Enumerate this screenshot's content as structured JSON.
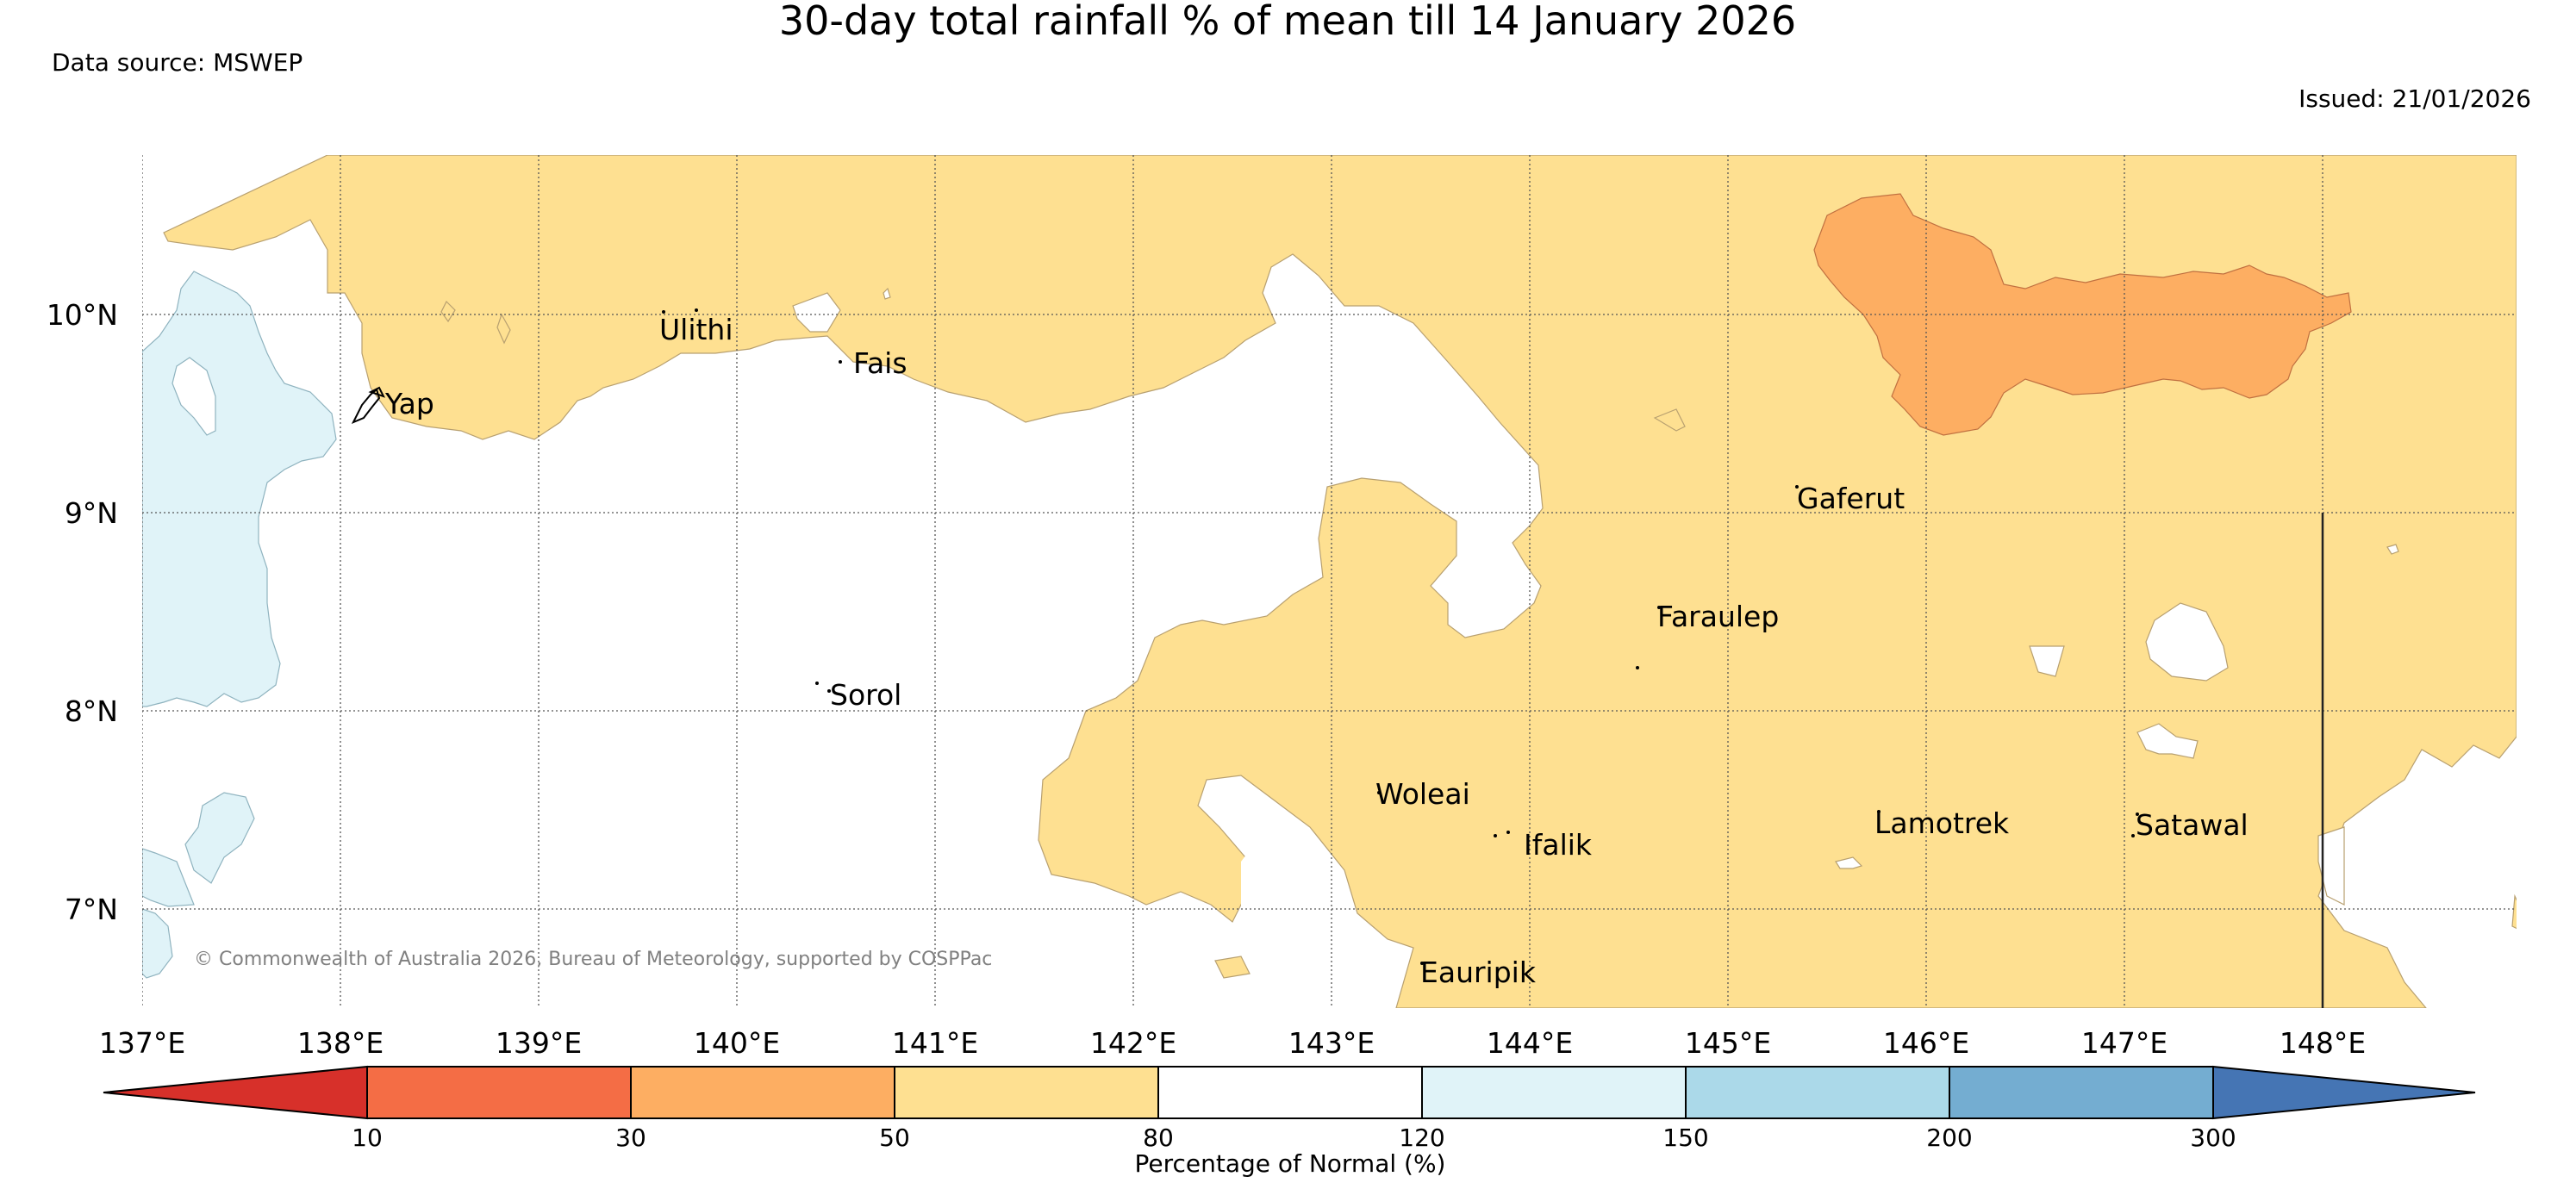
{
  "header": {
    "title": "30-day total rainfall % of mean till 14 January 2026",
    "data_source": "Data source: MSWEP",
    "issued": "Issued: 21/01/2026"
  },
  "map": {
    "copyright": "© Commonwealth of Australia 2026, Bureau of Meteorology, supported by COSPPac",
    "lon_ticks": [
      "137°E",
      "138°E",
      "139°E",
      "140°E",
      "141°E",
      "142°E",
      "143°E",
      "144°E",
      "145°E",
      "146°E",
      "147°E",
      "148°E"
    ],
    "lat_ticks": [
      "10°N",
      "9°N",
      "8°N",
      "7°N"
    ],
    "places": [
      "Ulithi",
      "Fais",
      "Yap",
      "Gaferut",
      "Faraulep",
      "Sorol",
      "Woleai",
      "Ifalik",
      "Lamotrek",
      "Satawal",
      "Eauripik"
    ]
  },
  "colorbar": {
    "title": "Percentage of Normal (%)",
    "ticks": [
      "10",
      "30",
      "50",
      "80",
      "120",
      "150",
      "200",
      "300"
    ],
    "colors": [
      "#d7302a",
      "#f46d45",
      "#fdae62",
      "#fee091",
      "#ffffff",
      "#e0f3f8",
      "#abd9e9",
      "#74add1",
      "#4575b4"
    ]
  }
}
